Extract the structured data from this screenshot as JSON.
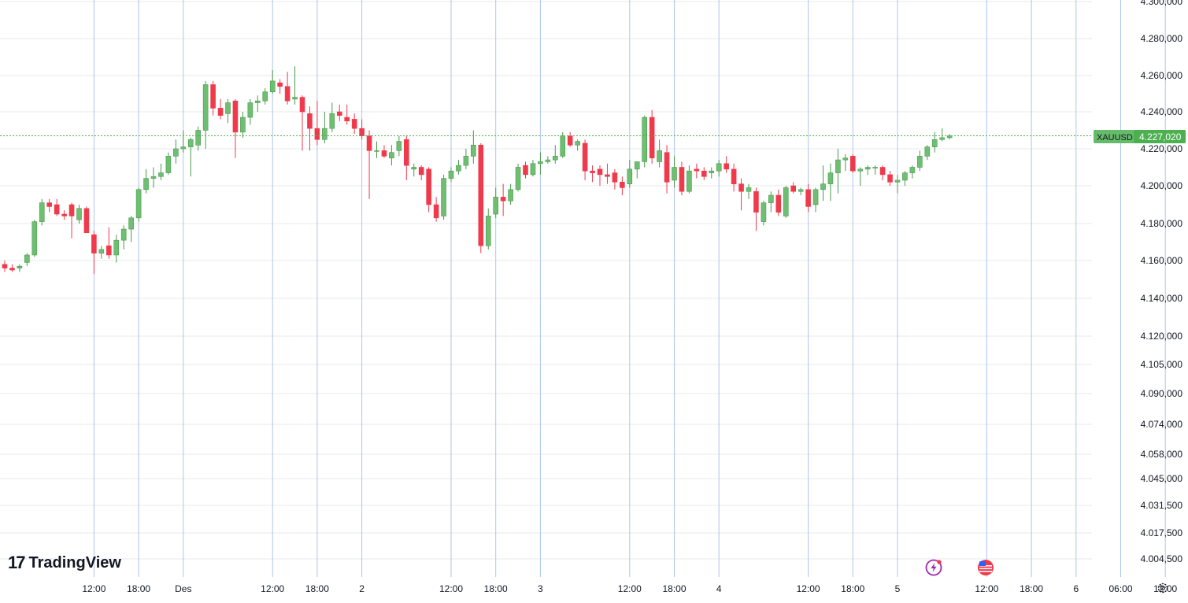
{
  "brand": {
    "logo_mark": "17",
    "name": "TradingView"
  },
  "symbol": {
    "ticker": "XAUUSD",
    "last_price_label": "4.227,020",
    "last_price": 4227.02
  },
  "colors": {
    "up": "#6fbf73",
    "up_border": "#4a9a4e",
    "down": "#ef3a4c",
    "grid_v": "#aec4f0",
    "grid_h": "#e6e8ee",
    "price_line": "#4caf50",
    "label_bg": "#66bb6a"
  },
  "icons": [
    "lightning-icon",
    "us-flag-icon",
    "settings-icon"
  ],
  "chart_data": {
    "type": "candlestick",
    "interval_minutes": 60,
    "y_axis": {
      "ticks": [
        4300.0,
        4280.0,
        4260.0,
        4240.0,
        4220.0,
        4200.0,
        4180.0,
        4160.0,
        4140.0,
        4120.0,
        4105.0,
        4090.0,
        4074.0,
        4058.0,
        4045.0,
        4031.5,
        4017.5,
        4004.5
      ],
      "tick_labels": [
        "4.300,000",
        "4.280,000",
        "4.260,000",
        "4.240,000",
        "4.220,000",
        "4.200,000",
        "4.180,000",
        "4.160,000",
        "4.140,000",
        "4.120,000",
        "4.105,000",
        "4.090,000",
        "4.074,000",
        "4.058,000",
        "4.045,000",
        "4.031,500",
        "4.017,500",
        "4.004,500"
      ]
    },
    "x_axis": {
      "tick_labels": [
        "12:00",
        "18:00",
        "Des",
        "12:00",
        "18:00",
        "2",
        "12:00",
        "18:00",
        "3",
        "12:00",
        "18:00",
        "4",
        "12:00",
        "18:00",
        "5",
        "12:00",
        "18:00",
        "6",
        "06:00",
        "12:00",
        "18"
      ],
      "tick_hours": [
        12,
        18,
        24,
        36,
        42,
        48,
        60,
        66,
        72,
        84,
        90,
        96,
        108,
        114,
        120,
        132,
        138,
        144,
        150,
        156,
        162
      ]
    },
    "candles": [
      [
        4158.0,
        4160.0,
        4154.0,
        4156.0
      ],
      [
        4156.0,
        4158.0,
        4154.0,
        4155.0
      ],
      [
        4156.0,
        4158.0,
        4154.0,
        4157.0
      ],
      [
        4159.0,
        4164.0,
        4157.0,
        4163.0
      ],
      [
        4163.0,
        4182.0,
        4162.0,
        4181.0
      ],
      [
        4181.0,
        4193.0,
        4179.0,
        4191.0
      ],
      [
        4191.0,
        4193.0,
        4186.0,
        4189.0
      ],
      [
        4190.0,
        4193.0,
        4184.0,
        4185.0
      ],
      [
        4185.0,
        4187.0,
        4182.0,
        4184.0
      ],
      [
        4190.0,
        4191.0,
        4172.0,
        4184.0
      ],
      [
        4182.0,
        4190.0,
        4180.0,
        4188.0
      ],
      [
        4188.0,
        4189.0,
        4175.0,
        4175.0
      ],
      [
        4174.0,
        4176.0,
        4153.0,
        4164.0
      ],
      [
        4164.0,
        4168.0,
        4161.0,
        4166.0
      ],
      [
        4168.0,
        4178.0,
        4161.0,
        4163.0
      ],
      [
        4163.0,
        4174.0,
        4159.0,
        4171.0
      ],
      [
        4171.0,
        4179.0,
        4166.0,
        4177.0
      ],
      [
        4177.0,
        4184.0,
        4170.0,
        4183.0
      ],
      [
        4183.0,
        4199.0,
        4181.0,
        4198.0
      ],
      [
        4198.0,
        4209.0,
        4196.0,
        4204.0
      ],
      [
        4204.0,
        4210.0,
        4199.0,
        4205.0
      ],
      [
        4205.0,
        4212.0,
        4203.0,
        4207.0
      ],
      [
        4207.0,
        4218.0,
        4206.0,
        4216.0
      ],
      [
        4216.0,
        4225.0,
        4212.0,
        4220.0
      ],
      [
        4220.0,
        4230.0,
        4218.0,
        4221.0
      ],
      [
        4221.0,
        4226.0,
        4205.0,
        4225.0
      ],
      [
        4222.0,
        4232.0,
        4219.0,
        4230.0
      ],
      [
        4230.0,
        4257.0,
        4220.0,
        4255.0
      ],
      [
        4255.0,
        4257.0,
        4238.0,
        4242.0
      ],
      [
        4242.0,
        4247.0,
        4236.0,
        4238.0
      ],
      [
        4239.0,
        4247.0,
        4234.0,
        4245.0
      ],
      [
        4246.0,
        4247.0,
        4215.0,
        4229.0
      ],
      [
        4229.0,
        4240.0,
        4226.0,
        4237.0
      ],
      [
        4237.0,
        4247.0,
        4233.0,
        4245.0
      ],
      [
        4245.0,
        4249.0,
        4240.0,
        4246.0
      ],
      [
        4246.0,
        4253.0,
        4244.0,
        4251.0
      ],
      [
        4251.0,
        4263.0,
        4250.0,
        4257.0
      ],
      [
        4256.0,
        4258.0,
        4250.0,
        4254.0
      ],
      [
        4254.0,
        4262.0,
        4244.0,
        4246.0
      ],
      [
        4247.0,
        4265.0,
        4244.0,
        4248.0
      ],
      [
        4248.0,
        4249.0,
        4219.0,
        4240.0
      ],
      [
        4239.0,
        4243.0,
        4219.0,
        4231.0
      ],
      [
        4231.0,
        4246.0,
        4222.0,
        4225.0
      ],
      [
        4225.0,
        4240.0,
        4223.0,
        4231.0
      ],
      [
        4231.0,
        4245.0,
        4229.0,
        4239.0
      ],
      [
        4240.0,
        4244.0,
        4235.0,
        4238.0
      ],
      [
        4237.0,
        4244.0,
        4233.0,
        4235.0
      ],
      [
        4236.0,
        4239.0,
        4228.0,
        4231.0
      ],
      [
        4231.0,
        4236.0,
        4225.0,
        4227.0
      ],
      [
        4227.0,
        4230.0,
        4193.0,
        4219.0
      ],
      [
        4219.0,
        4224.0,
        4215.0,
        4219.0
      ],
      [
        4219.0,
        4222.0,
        4215.0,
        4216.0
      ],
      [
        4215.0,
        4222.0,
        4211.0,
        4218.0
      ],
      [
        4219.0,
        4227.0,
        4216.0,
        4224.0
      ],
      [
        4225.0,
        4227.0,
        4203.0,
        4211.0
      ],
      [
        4209.0,
        4212.0,
        4205.0,
        4210.0
      ],
      [
        4210.0,
        4211.0,
        4203.0,
        4206.0
      ],
      [
        4209.0,
        4210.0,
        4186.0,
        4190.0
      ],
      [
        4190.0,
        4194.0,
        4181.0,
        4183.0
      ],
      [
        4184.0,
        4206.0,
        4182.0,
        4204.0
      ],
      [
        4204.0,
        4210.0,
        4202.0,
        4208.0
      ],
      [
        4208.0,
        4214.0,
        4206.0,
        4211.0
      ],
      [
        4211.0,
        4220.0,
        4209.0,
        4216.0
      ],
      [
        4216.0,
        4230.0,
        4212.0,
        4222.0
      ],
      [
        4222.0,
        4223.0,
        4164.0,
        4168.0
      ],
      [
        4168.0,
        4188.0,
        4166.0,
        4184.0
      ],
      [
        4185.0,
        4199.0,
        4183.0,
        4194.0
      ],
      [
        4194.0,
        4201.0,
        4184.0,
        4192.0
      ],
      [
        4192.0,
        4201.0,
        4190.0,
        4198.0
      ],
      [
        4198.0,
        4212.0,
        4197.0,
        4210.0
      ],
      [
        4211.0,
        4213.0,
        4204.0,
        4206.0
      ],
      [
        4206.0,
        4214.0,
        4205.0,
        4212.0
      ],
      [
        4212.0,
        4218.0,
        4206.0,
        4213.0
      ],
      [
        4213.0,
        4216.0,
        4212.0,
        4214.0
      ],
      [
        4214.0,
        4222.0,
        4212.0,
        4216.0
      ],
      [
        4216.0,
        4229.0,
        4215.0,
        4227.0
      ],
      [
        4227.0,
        4229.0,
        4221.0,
        4222.0
      ],
      [
        4222.0,
        4225.0,
        4219.0,
        4224.0
      ],
      [
        4223.0,
        4225.0,
        4203.0,
        4208.0
      ],
      [
        4208.0,
        4211.0,
        4202.0,
        4207.0
      ],
      [
        4209.0,
        4211.0,
        4200.0,
        4206.0
      ],
      [
        4206.0,
        4212.0,
        4201.0,
        4205.0
      ],
      [
        4207.0,
        4209.0,
        4198.0,
        4202.0
      ],
      [
        4202.0,
        4205.0,
        4195.0,
        4199.0
      ],
      [
        4201.0,
        4214.0,
        4199.0,
        4209.0
      ],
      [
        4209.0,
        4213.0,
        4204.0,
        4213.0
      ],
      [
        4213.0,
        4238.0,
        4210.0,
        4237.0
      ],
      [
        4237.0,
        4241.0,
        4212.0,
        4215.0
      ],
      [
        4213.0,
        4225.0,
        4210.0,
        4219.0
      ],
      [
        4218.0,
        4222.0,
        4196.0,
        4202.0
      ],
      [
        4203.0,
        4216.0,
        4199.0,
        4210.0
      ],
      [
        4210.0,
        4213.0,
        4195.0,
        4197.0
      ],
      [
        4197.0,
        4211.0,
        4196.0,
        4208.0
      ],
      [
        4209.0,
        4212.0,
        4204.0,
        4208.0
      ],
      [
        4208.0,
        4210.0,
        4203.0,
        4205.0
      ],
      [
        4207.0,
        4210.0,
        4204.0,
        4208.0
      ],
      [
        4208.0,
        4214.0,
        4205.0,
        4212.0
      ],
      [
        4212.0,
        4216.0,
        4207.0,
        4209.0
      ],
      [
        4209.0,
        4212.0,
        4197.0,
        4201.0
      ],
      [
        4201.0,
        4204.0,
        4187.0,
        4197.0
      ],
      [
        4197.0,
        4201.0,
        4193.0,
        4199.0
      ],
      [
        4197.0,
        4199.0,
        4176.0,
        4186.0
      ],
      [
        4181.0,
        4192.0,
        4179.0,
        4191.0
      ],
      [
        4191.0,
        4197.0,
        4186.0,
        4195.0
      ],
      [
        4195.0,
        4198.0,
        4184.0,
        4186.0
      ],
      [
        4184.0,
        4200.0,
        4183.0,
        4199.0
      ],
      [
        4200.0,
        4202.0,
        4196.0,
        4197.0
      ],
      [
        4197.0,
        4199.0,
        4195.0,
        4198.0
      ],
      [
        4198.0,
        4201.0,
        4186.0,
        4189.0
      ],
      [
        4190.0,
        4199.0,
        4186.0,
        4198.0
      ],
      [
        4198.0,
        4211.0,
        4192.0,
        4201.0
      ],
      [
        4201.0,
        4212.0,
        4192.0,
        4207.0
      ],
      [
        4207.0,
        4220.0,
        4196.0,
        4214.0
      ],
      [
        4214.0,
        4217.0,
        4208.0,
        4215.0
      ],
      [
        4216.0,
        4217.0,
        4207.0,
        4208.0
      ],
      [
        4208.0,
        4210.0,
        4200.0,
        4209.0
      ],
      [
        4209.0,
        4211.0,
        4206.0,
        4210.0
      ],
      [
        4210.0,
        4211.0,
        4206.0,
        4210.0
      ],
      [
        4210.0,
        4211.0,
        4203.0,
        4206.0
      ],
      [
        4206.0,
        4208.0,
        4200.0,
        4202.0
      ],
      [
        4202.0,
        4206.0,
        4196.0,
        4203.0
      ],
      [
        4203.0,
        4208.0,
        4200.0,
        4207.0
      ],
      [
        4207.0,
        4211.0,
        4204.0,
        4210.0
      ],
      [
        4210.0,
        4219.0,
        4208.0,
        4216.0
      ],
      [
        4216.0,
        4222.0,
        4214.0,
        4221.0
      ],
      [
        4221.0,
        4229.0,
        4218.0,
        4225.0
      ],
      [
        4225.0,
        4231.0,
        4224.0,
        4226.0
      ],
      [
        4226.0,
        4228.0,
        4225.0,
        4227.0
      ]
    ]
  }
}
